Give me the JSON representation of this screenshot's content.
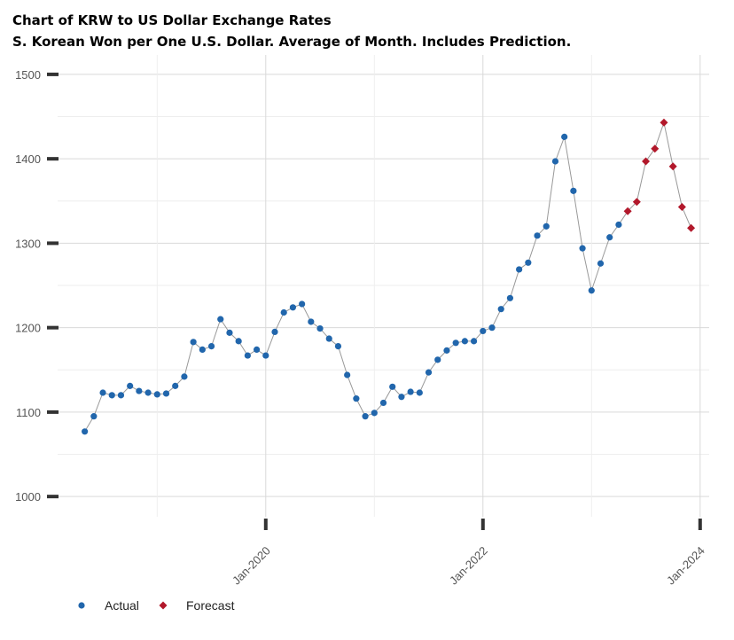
{
  "chart_data": {
    "type": "line",
    "title": "Chart of KRW to US Dollar Exchange Rates",
    "subtitle": "S. Korean Won per One U.S. Dollar.  Average of Month.  Includes Prediction.",
    "x": [
      "2018-05",
      "2018-06",
      "2018-07",
      "2018-08",
      "2018-09",
      "2018-10",
      "2018-11",
      "2018-12",
      "2019-01",
      "2019-02",
      "2019-03",
      "2019-04",
      "2019-05",
      "2019-06",
      "2019-07",
      "2019-08",
      "2019-09",
      "2019-10",
      "2019-11",
      "2019-12",
      "2020-01",
      "2020-02",
      "2020-03",
      "2020-04",
      "2020-05",
      "2020-06",
      "2020-07",
      "2020-08",
      "2020-09",
      "2020-10",
      "2020-11",
      "2020-12",
      "2021-01",
      "2021-02",
      "2021-03",
      "2021-04",
      "2021-05",
      "2021-06",
      "2021-07",
      "2021-08",
      "2021-09",
      "2021-10",
      "2021-11",
      "2021-12",
      "2022-01",
      "2022-02",
      "2022-03",
      "2022-04",
      "2022-05",
      "2022-06",
      "2022-07",
      "2022-08",
      "2022-09",
      "2022-10",
      "2022-11",
      "2022-12",
      "2023-01",
      "2023-02",
      "2023-03",
      "2023-04",
      "2023-05",
      "2023-06",
      "2023-07",
      "2023-08",
      "2023-09",
      "2023-10",
      "2023-11",
      "2023-12"
    ],
    "series": [
      {
        "name": "Actual",
        "color": "#2166ac",
        "values": [
          1077,
          1095,
          1123,
          1120,
          1120,
          1131,
          1125,
          1123,
          1121,
          1122,
          1131,
          1142,
          1183,
          1174,
          1178,
          1210,
          1194,
          1184,
          1167,
          1174,
          1167,
          1195,
          1218,
          1224,
          1228,
          1207,
          1199,
          1187,
          1178,
          1144,
          1116,
          1095,
          1099,
          1111,
          1130,
          1118,
          1124,
          1123,
          1147,
          1162,
          1173,
          1182,
          1184,
          1184,
          1196,
          1200,
          1222,
          1235,
          1269,
          1277,
          1309,
          1320,
          1397,
          1426,
          1362,
          1294,
          1244,
          1276,
          1307,
          1322,
          null,
          null,
          null,
          null,
          null,
          null,
          null,
          null
        ]
      },
      {
        "name": "Forecast",
        "color": "#b2182b",
        "values": [
          null,
          null,
          null,
          null,
          null,
          null,
          null,
          null,
          null,
          null,
          null,
          null,
          null,
          null,
          null,
          null,
          null,
          null,
          null,
          null,
          null,
          null,
          null,
          null,
          null,
          null,
          null,
          null,
          null,
          null,
          null,
          null,
          null,
          null,
          null,
          null,
          null,
          null,
          null,
          null,
          null,
          null,
          null,
          null,
          null,
          null,
          null,
          null,
          null,
          null,
          null,
          null,
          null,
          null,
          null,
          null,
          null,
          null,
          null,
          null,
          1338,
          1349,
          1397,
          1412,
          1443,
          1391,
          1343,
          1318
        ]
      }
    ],
    "line_color": "#999999",
    "xlim": [
      "2018-02",
      "2024-02"
    ],
    "xticks": [
      {
        "value": "2020-01",
        "label": "Jan-2020"
      },
      {
        "value": "2022-01",
        "label": "Jan-2022"
      },
      {
        "value": "2024-01",
        "label": "Jan-2024"
      }
    ],
    "ylim": [
      976,
      1523
    ],
    "yticks": [
      1000,
      1100,
      1200,
      1300,
      1400,
      1500
    ],
    "grid": true
  }
}
